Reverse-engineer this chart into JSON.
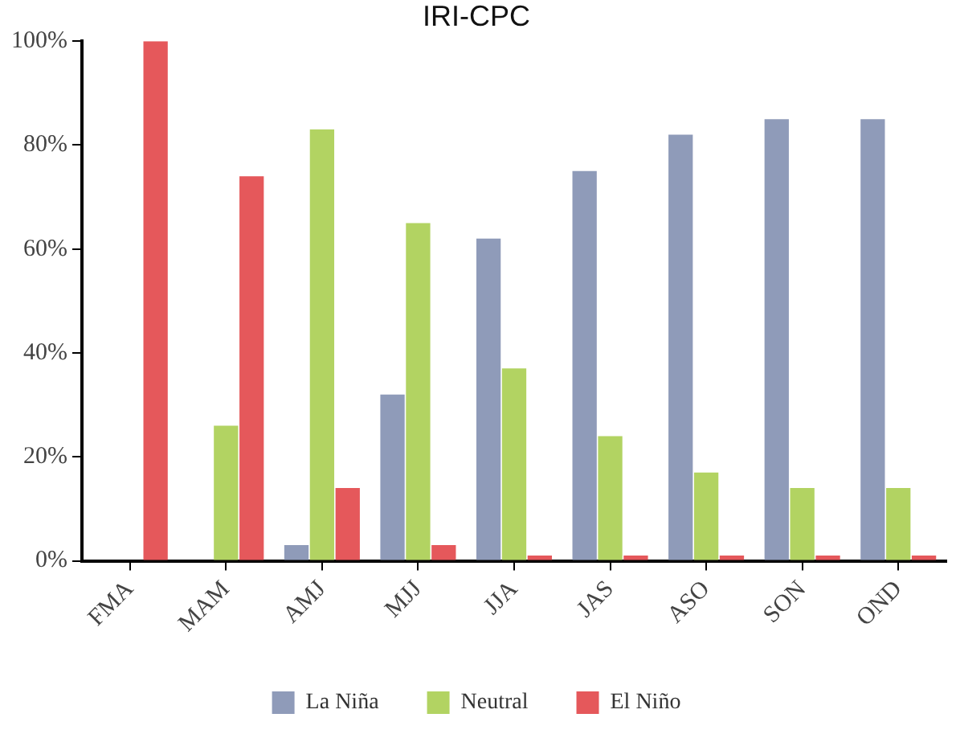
{
  "chart_data": {
    "type": "bar",
    "title": "IRI-CPC",
    "categories": [
      "FMA",
      "MAM",
      "AMJ",
      "MJJ",
      "JJA",
      "JAS",
      "ASO",
      "SON",
      "OND"
    ],
    "series": [
      {
        "name": "La Niña",
        "color": "#8f9bb9",
        "values": [
          0,
          0,
          3,
          32,
          62,
          75,
          82,
          85,
          85
        ]
      },
      {
        "name": "Neutral",
        "color": "#b2d362",
        "values": [
          0,
          26,
          83,
          65,
          37,
          24,
          17,
          14,
          14
        ]
      },
      {
        "name": "El Niño",
        "color": "#e5585b",
        "values": [
          100,
          74,
          14,
          3,
          1,
          1,
          1,
          1,
          1
        ]
      }
    ],
    "ylim": [
      0,
      100
    ],
    "yticks": [
      {
        "value": 0,
        "label": "0%"
      },
      {
        "value": 20,
        "label": "20%"
      },
      {
        "value": 40,
        "label": "40%"
      },
      {
        "value": 60,
        "label": "60%"
      },
      {
        "value": 80,
        "label": "80%"
      },
      {
        "value": 100,
        "label": "100%"
      }
    ],
    "grid": false,
    "legend": "bottom"
  }
}
